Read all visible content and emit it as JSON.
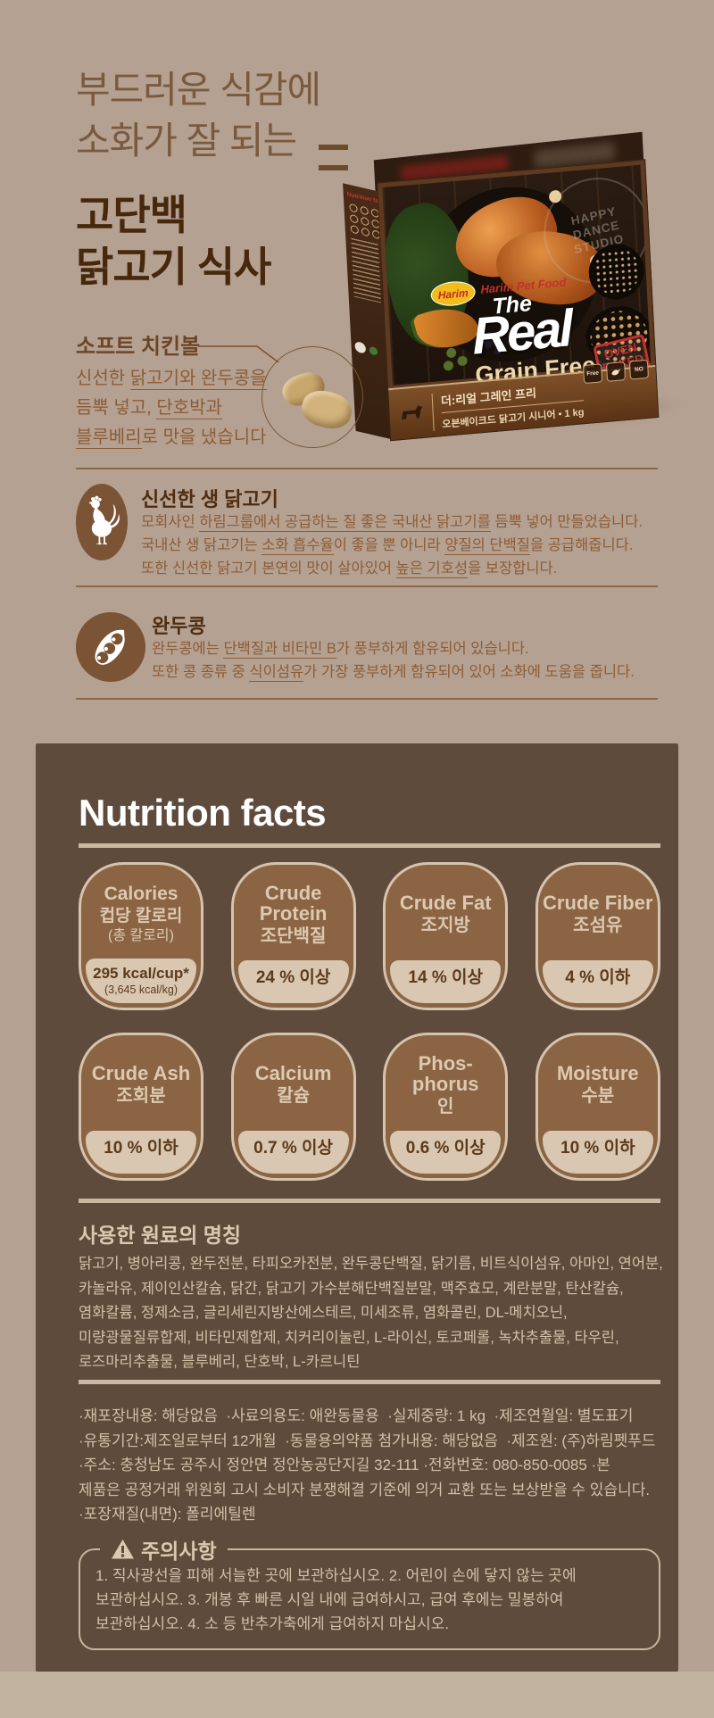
{
  "page": {
    "background": "#b4a192",
    "panel_color": "#5e4b3c",
    "accent_dark_brown": "#47280d",
    "accent_rust": "#8d5c35",
    "pill_brown": "#8a6443",
    "pill_tan": "#d9c7b1",
    "brand_red": "#c5302b"
  },
  "headline": {
    "light_lines": [
      "부드러운 식감에",
      "소화가 잘 되는"
    ],
    "bold_lines": [
      "고단백",
      "닭고기 식사"
    ]
  },
  "soft_chicken": {
    "title": "소프트 치킨볼",
    "lines": [
      [
        {
          "t": "신선한 ",
          "u": false
        },
        {
          "t": "닭고기와 완두콩을",
          "u": true
        }
      ],
      [
        {
          "t": "듬뿍 넣고, ",
          "u": false
        },
        {
          "t": "단호박과",
          "u": true
        }
      ],
      [
        {
          "t": "블루베리",
          "u": true
        },
        {
          "t": "로 맛을 냈습니다",
          "u": false
        }
      ]
    ]
  },
  "features": [
    {
      "icon": "rooster-icon",
      "title": "신선한 생 닭고기",
      "lines": [
        [
          {
            "t": "모회사인 ",
            "u": false
          },
          {
            "t": "하림그룹에서 공급하는 질 좋은 국내산 닭고기를",
            "u": true
          },
          {
            "t": " 듬뿍 넣어 만들었습니다.",
            "u": false
          }
        ],
        [
          {
            "t": "국내산 생 닭고기는 ",
            "u": false
          },
          {
            "t": "소화 흡수율",
            "u": true
          },
          {
            "t": "이 좋을 뿐 아니라 ",
            "u": false
          },
          {
            "t": "양질의 단백질",
            "u": true
          },
          {
            "t": "을 공급해줍니다.",
            "u": false
          }
        ],
        [
          {
            "t": "또한 신선한 닭고기 본연의 맛이 살아있어 ",
            "u": false
          },
          {
            "t": "높은 기호성",
            "u": true
          },
          {
            "t": "을 보장합니다.",
            "u": false
          }
        ]
      ]
    },
    {
      "icon": "pea-icon",
      "title": "완두콩",
      "lines": [
        [
          {
            "t": "완두콩에는 ",
            "u": false
          },
          {
            "t": "단백질과 비타민 B",
            "u": true
          },
          {
            "t": "가 풍부하게 함유되어 있습니다.",
            "u": false
          }
        ],
        [
          {
            "t": "또한 콩 종류 중 ",
            "u": false
          },
          {
            "t": "식이섬유",
            "u": true
          },
          {
            "t": "가 가장 풍부하게 함유되어 있어 소화에 도움을 줍니다.",
            "u": false
          }
        ]
      ]
    }
  ],
  "product_box": {
    "side_label": "Nutrition facts",
    "brand_logo": "Harim",
    "brand_line": "Harim Pet Food",
    "name_the": "The",
    "name_real": "Real",
    "grain_free": "Grain Free",
    "human_grade": "100 % HUMAN GRADE",
    "stamp": "OVEN BAKED",
    "watermark": "HAPPY DANCE STUDIO",
    "strip_title": "더:리얼 그레인 프리",
    "strip_sub": "오븐베이크드 닭고기 시니어 • 1 kg",
    "badge_free": "Free",
    "badge_no": "NO"
  },
  "nutrition": {
    "title": "Nutrition facts",
    "boxes": [
      {
        "en": "Calories",
        "ko": "컵당 칼로리",
        "sub": "(총 칼로리)",
        "value": "295 kcal/cup*",
        "value_sub": "(3,645 kcal/kg)"
      },
      {
        "en": "Crude Protein",
        "ko": "조단백질",
        "value": "24 % 이상"
      },
      {
        "en": "Crude Fat",
        "ko": "조지방",
        "value": "14 % 이상"
      },
      {
        "en": "Crude Fiber",
        "ko": "조섬유",
        "value": "4 % 이하"
      },
      {
        "en": "Crude Ash",
        "ko": "조회분",
        "value": "10 % 이하"
      },
      {
        "en": "Calcium",
        "ko": "칼슘",
        "value": "0.7 % 이상"
      },
      {
        "en": "Phos-phorus",
        "ko": "인",
        "value": "0.6 % 이상"
      },
      {
        "en": "Moisture",
        "ko": "수분",
        "value": "10 % 이하"
      }
    ],
    "ingredients_title": "사용한 원료의 명칭",
    "ingredients": "닭고기, 병아리콩, 완두전분, 타피오카전분, 완두콩단백질, 닭기름, 비트식이섬유, 아마인, 연어분, 카놀라유, 제이인산칼슘, 닭간, 닭고기 가수분해단백질분말, 맥주효모, 계란분말, 탄산칼슘, 염화칼륨, 정제소금, 글리세린지방산에스테르, 미세조류, 염화콜린, DL-메치오닌, 미량광물질류합제, 비타민제합제, 치커리이눌린, L-라이신, 토코페롤, 녹차추출물, 타우린, 로즈마리추출물, 블루베리, 단호박, L-카르니틴",
    "info": "·재포장내용: 해당없음  ·사료의용도: 애완동물용  ·실제중량: 1 kg  ·제조연월일: 별도표기\n·유통기간:제조일로부터 12개월  ·동물용의약품 첨가내용: 해당없음  ·제조원: (주)하림펫푸드\n·주소: 충청남도 공주시 정안면 정안농공단지길 32-111 ·전화번호: 080-850-0085 ·본\n제품은 공정거래 위원회 고시 소비자 분쟁해결 기준에 의거 교환 또는 보상받을 수 있습니다.\n·포장재질(내면): 폴리에틸렌",
    "warning_title": "주의사항",
    "warning_text": "1. 직사광선을 피해 서늘한 곳에 보관하십시오.  2. 어린이 손에 닿지 않는 곳에 보관하십시오.  3. 개봉 후 빠른 시일 내에 급여하시고, 급여 후에는 밀봉하여 보관하십시오. 4. 소 등 반추가축에게 급여하지 마십시오."
  }
}
